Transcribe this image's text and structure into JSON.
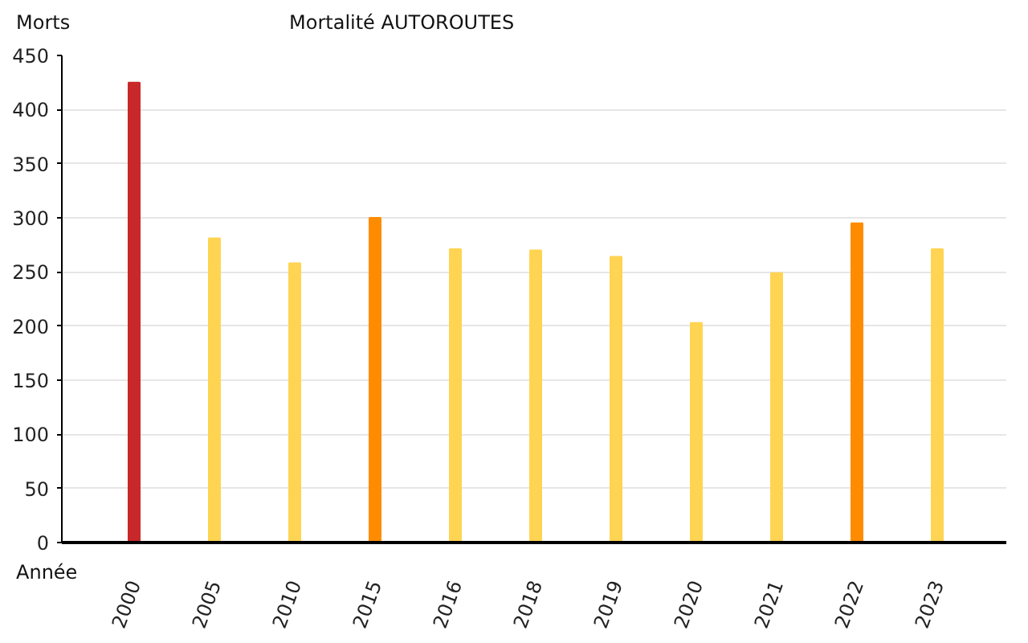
{
  "chart_data": {
    "type": "bar",
    "title": "Mortalité AUTOROUTES",
    "ylabel": "Morts",
    "xlabel": "Année",
    "categories": [
      "2000",
      "2005",
      "2010",
      "2015",
      "2016",
      "2018",
      "2019",
      "2020",
      "2021",
      "2022",
      "2023"
    ],
    "values": [
      425,
      281,
      258,
      300,
      271,
      270,
      264,
      203,
      249,
      295,
      271
    ],
    "colors": [
      "#c8282a",
      "#ffd452",
      "#ffd452",
      "#ff8c00",
      "#ffd452",
      "#ffd452",
      "#ffd452",
      "#ffd452",
      "#ffd452",
      "#ff8c00",
      "#ffd452"
    ],
    "ylim": [
      0,
      450
    ],
    "yticks": [
      0,
      50,
      100,
      150,
      200,
      250,
      300,
      350,
      400,
      450
    ],
    "grid": "y"
  }
}
